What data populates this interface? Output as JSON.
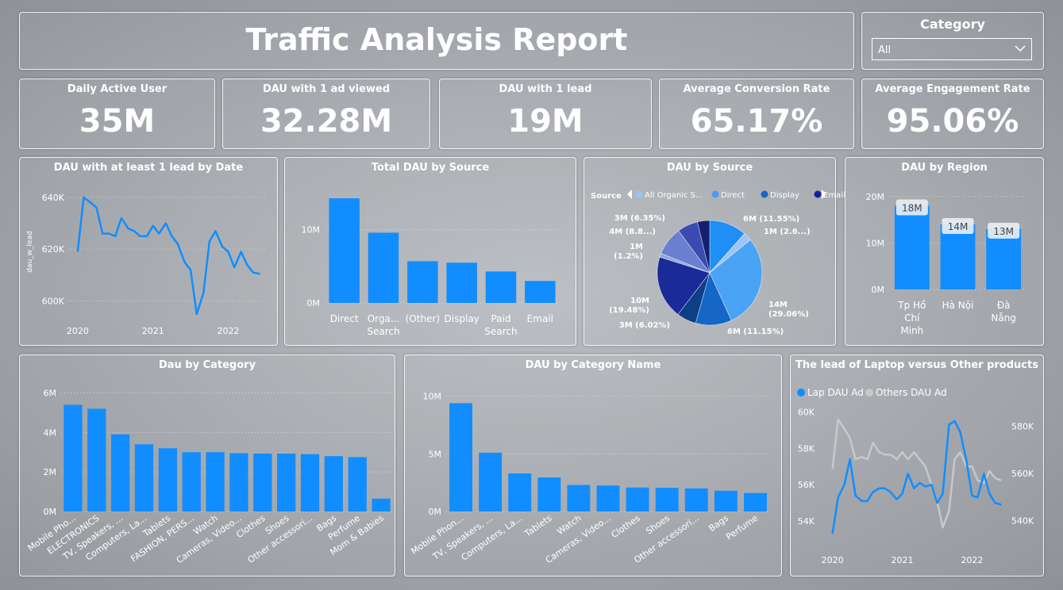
{
  "header": {
    "title": "Traffic Analysis Report"
  },
  "slicer": {
    "label": "Category",
    "value": "All"
  },
  "kpis": [
    {
      "title": "Daily Active User",
      "value": "35M"
    },
    {
      "title": "DAU with 1 ad viewed",
      "value": "32.28M"
    },
    {
      "title": "DAU with 1 lead",
      "value": "19M"
    },
    {
      "title": "Average Conversion Rate",
      "value": "65.17%"
    },
    {
      "title": "Average Engagement Rate",
      "value": "95.06%"
    }
  ],
  "colors": {
    "primary": "#118DFF",
    "grey": "#C8C8C8",
    "dark_navy": "#12239E",
    "light": "#FFFFFF"
  },
  "chart_data": [
    {
      "id": "lead_by_date",
      "type": "line",
      "title": "DAU with at least 1 lead by Date",
      "ylabel": "dau_w_lead",
      "xlabel": "",
      "ylim": [
        595000,
        643000
      ],
      "yticks": [
        600000,
        620000,
        640000
      ],
      "ytick_labels": [
        "600K",
        "620K",
        "640K"
      ],
      "xticks": [
        2020,
        2021,
        2022
      ],
      "x": [
        2020.0,
        2020.08,
        2020.17,
        2020.25,
        2020.33,
        2020.42,
        2020.5,
        2020.58,
        2020.67,
        2020.75,
        2020.83,
        2020.92,
        2021.0,
        2021.08,
        2021.17,
        2021.25,
        2021.33,
        2021.42,
        2021.5,
        2021.58,
        2021.67,
        2021.75,
        2021.83,
        2021.92,
        2022.0,
        2022.08,
        2022.17,
        2022.25,
        2022.33,
        2022.42
      ],
      "values": [
        619000,
        640000,
        638000,
        636000,
        626000,
        626000,
        625000,
        632000,
        628000,
        627000,
        625000,
        625000,
        629000,
        626000,
        630000,
        625000,
        622000,
        615000,
        612000,
        595000,
        603000,
        623000,
        627000,
        621000,
        619000,
        613000,
        619000,
        614000,
        611000,
        610500
      ],
      "series_color": "#118DFF"
    },
    {
      "id": "total_dau_source",
      "type": "bar",
      "title": "Total DAU by Source",
      "categories": [
        "Direct",
        "Organic Search",
        "(Other)",
        "Display",
        "Paid Search",
        "Email"
      ],
      "category_lines": [
        [
          "Direct"
        ],
        [
          "Orga...",
          "Search"
        ],
        [
          "(Other)"
        ],
        [
          "Display"
        ],
        [
          "Paid",
          "Search"
        ],
        [
          "Email"
        ]
      ],
      "values": [
        14300000,
        9600000,
        5700000,
        5500000,
        4300000,
        3000000
      ],
      "ylim": [
        0,
        15500000
      ],
      "yticks": [
        0,
        10000000
      ],
      "ytick_labels": [
        "0M",
        "10M"
      ]
    },
    {
      "id": "dau_by_source_pie",
      "type": "pie",
      "title": "DAU by Source",
      "legend_title": "Source",
      "legend": [
        {
          "label": "All Organic S...",
          "color": "#9DC4F5"
        },
        {
          "label": "Direct",
          "color": "#4A9CF0"
        },
        {
          "label": "Display",
          "color": "#1566C6"
        },
        {
          "label": "Email",
          "color": "#12239E"
        }
      ],
      "slices": [
        {
          "label": "6M (11.55%)",
          "value": 11.55,
          "color": "#1F8EF5"
        },
        {
          "label": "1M (2.6...)",
          "value": 2.6,
          "color": "#9DC4F5"
        },
        {
          "label": "14M (29.06%)",
          "value": 29.06,
          "color": "#4BA3F5"
        },
        {
          "label": "6M (11.15%)",
          "value": 11.15,
          "color": "#1566C6"
        },
        {
          "label": "3M (6.02%)",
          "value": 6.02,
          "color": "#0D3E86"
        },
        {
          "label": "10M (19.48%)",
          "value": 19.48,
          "color": "#1B2A99"
        },
        {
          "label": "1M (1.2%)",
          "value": 1.2,
          "color": "#8FA8DD"
        },
        {
          "label": "4M (8.8...)",
          "value": 8.8,
          "color": "#6B7FD0"
        },
        {
          "label": "3M (6.35%)",
          "value": 6.35,
          "color": "#3A4AB0"
        },
        {
          "label": "",
          "value": 3.79,
          "color": "#161F6E"
        }
      ]
    },
    {
      "id": "dau_by_region",
      "type": "bar",
      "title": "DAU by Region",
      "categories": [
        "Tp Hồ Chí Minh",
        "Hà Nội",
        "Đà Nẵng"
      ],
      "category_lines": [
        [
          "Tp Hồ",
          "Chí",
          "Minh"
        ],
        [
          "Hà Nội"
        ],
        [
          "Đà",
          "Nẵng"
        ]
      ],
      "values": [
        18000000,
        14000000,
        13000000
      ],
      "data_labels": [
        "18M",
        "14M",
        "13M"
      ],
      "ylim": [
        0,
        21500000
      ],
      "yticks": [
        0,
        10000000,
        20000000
      ],
      "ytick_labels": [
        "0M",
        "10M",
        "20M"
      ]
    },
    {
      "id": "dau_by_category",
      "type": "bar",
      "title": "Dau by Category",
      "categories": [
        "Mobile Pho...",
        "ELECTRONICS",
        "TV, Speakers, ...",
        "Computers, La...",
        "Tablets",
        "FASHION, PERS...",
        "Watch",
        "Cameras, Video...",
        "Clothes",
        "Shoes",
        "Other accessori...",
        "Bags",
        "Perfume",
        "Mom & Babies"
      ],
      "values": [
        5400000,
        5200000,
        3900000,
        3400000,
        3200000,
        3000000,
        3000000,
        2950000,
        2930000,
        2930000,
        2900000,
        2800000,
        2750000,
        650000
      ],
      "ylim": [
        0,
        6300000
      ],
      "yticks": [
        0,
        2000000,
        4000000,
        6000000
      ],
      "ytick_labels": [
        "0M",
        "2M",
        "4M",
        "6M"
      ]
    },
    {
      "id": "dau_by_category_name",
      "type": "bar",
      "title": "DAU by Category Name",
      "categories": [
        "Mobile Phon...",
        "TV, Speakers, ...",
        "Computers, La...",
        "Tablets",
        "Watch",
        "Cameras, Video...",
        "Clothes",
        "Shoes",
        "Other accessori...",
        "Bags",
        "Perfume"
      ],
      "values": [
        9400000,
        5100000,
        3300000,
        2950000,
        2300000,
        2250000,
        2080000,
        2050000,
        2000000,
        1800000,
        1600000
      ],
      "ylim": [
        0,
        10800000
      ],
      "yticks": [
        0,
        5000000,
        10000000
      ],
      "ytick_labels": [
        "0M",
        "5M",
        "10M"
      ]
    },
    {
      "id": "laptop_vs_others",
      "type": "line",
      "title": "The lead of Laptop versus Other products",
      "xticks": [
        2020,
        2021,
        2022
      ],
      "x": [
        2020.0,
        2020.08,
        2020.17,
        2020.25,
        2020.33,
        2020.42,
        2020.5,
        2020.58,
        2020.67,
        2020.75,
        2020.83,
        2020.92,
        2021.0,
        2021.08,
        2021.17,
        2021.25,
        2021.33,
        2021.42,
        2021.5,
        2021.58,
        2021.67,
        2021.75,
        2021.83,
        2021.92,
        2022.0,
        2022.08,
        2022.17,
        2022.25,
        2022.33,
        2022.42
      ],
      "series": [
        {
          "name": "Lap DAU Ad",
          "axis": "left",
          "color": "#118DFF",
          "values": [
            53300,
            55300,
            56000,
            57400,
            55400,
            55100,
            55100,
            55600,
            55800,
            55800,
            55600,
            55200,
            55500,
            56600,
            55800,
            56100,
            55900,
            56000,
            55000,
            55500,
            59300,
            59500,
            58900,
            57300,
            55400,
            55300,
            56600,
            55500,
            55000,
            54900
          ]
        },
        {
          "name": "Others DAU Ad",
          "axis": "right",
          "color": "#C8C8C8",
          "values": [
            562000,
            583000,
            579000,
            575000,
            566000,
            567000,
            566000,
            573000,
            569000,
            568000,
            568000,
            566000,
            569000,
            566000,
            569000,
            566000,
            563000,
            555000,
            548000,
            537000,
            544000,
            566000,
            569000,
            563000,
            563000,
            557000,
            556000,
            561000,
            558000,
            557000
          ]
        }
      ],
      "ylim_left": [
        53000,
        60500
      ],
      "yticks_left": [
        54000,
        56000,
        58000,
        60000
      ],
      "ytick_labels_left": [
        "54K",
        "56K",
        "58K",
        "60K"
      ],
      "ylim_right": [
        532000,
        590000
      ],
      "yticks_right": [
        540000,
        560000,
        580000
      ],
      "ytick_labels_right": [
        "540K",
        "560K",
        "580K"
      ]
    }
  ]
}
